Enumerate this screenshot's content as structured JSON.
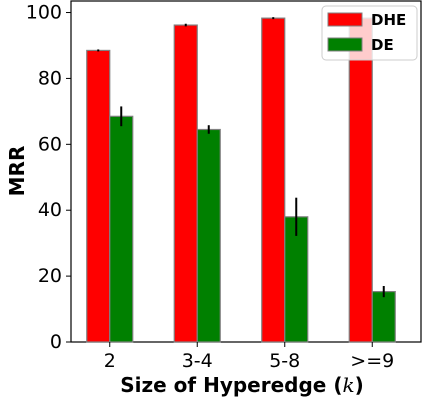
{
  "chart_data": {
    "type": "bar",
    "categories": [
      "2",
      "3-4",
      "5-8",
      ">=9"
    ],
    "series": [
      {
        "name": "DHE",
        "values": [
          88.5,
          96.2,
          98.3,
          98.3
        ],
        "errors": [
          0.3,
          0.4,
          0.3,
          0.3
        ],
        "color": "#ff0000"
      },
      {
        "name": "DE",
        "values": [
          68.5,
          64.5,
          38.0,
          15.3
        ],
        "errors": [
          3.0,
          1.3,
          5.8,
          1.7
        ],
        "color": "#008000"
      }
    ],
    "title": "",
    "xlabel_parts": [
      "Size of Hyperedge (",
      "k",
      ")"
    ],
    "ylabel": "MRR",
    "ylim": [
      0,
      100
    ],
    "yticks": [
      0,
      20,
      40,
      60,
      80,
      100
    ],
    "grid": false,
    "legend_position": "top-right",
    "edge_color": "#808080"
  }
}
